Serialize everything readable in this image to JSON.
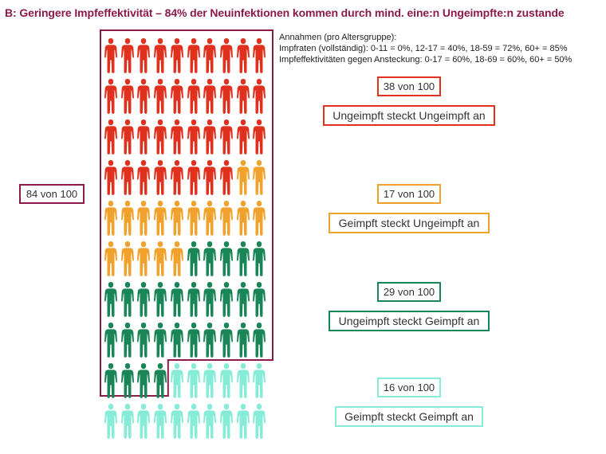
{
  "title": "B: Geringere Impfeffektivität – 84% der Neuinfektionen kommen durch mind. eine:n Ungeimpfte:n zustande",
  "assumptions": {
    "heading": "Annahmen (pro Altersgruppe):",
    "line1": "Impfraten (vollständig): 0-11 = 0%, 12-17 = 40%, 18-59 = 72%, 60+ = 85%",
    "line2": "Impfeffektivitäten gegen Ansteckung: 0-17 = 60%, 18-69 = 60%, 60+ = 50%"
  },
  "total": {
    "label": "84 von 100",
    "value": 84,
    "color": "#8b1a4a"
  },
  "chart_data": {
    "type": "pictogram",
    "total": 100,
    "columns": 10,
    "icon": "person-icon",
    "categories": [
      {
        "name": "Ungeimpft steckt Ungeimpft an",
        "count_label": "38 von 100",
        "value": 38,
        "color": "#e0301e"
      },
      {
        "name": "Geimpft steckt Ungeimpft an",
        "count_label": "17 von 100",
        "value": 17,
        "color": "#f0a22d"
      },
      {
        "name": "Ungeimpft steckt Geimpft an",
        "count_label": "29 von 100",
        "value": 29,
        "color": "#1a8556"
      },
      {
        "name": "Geimpft steckt Geimpft an",
        "count_label": "16 von 100",
        "value": 16,
        "color": "#86ecd7"
      }
    ]
  }
}
